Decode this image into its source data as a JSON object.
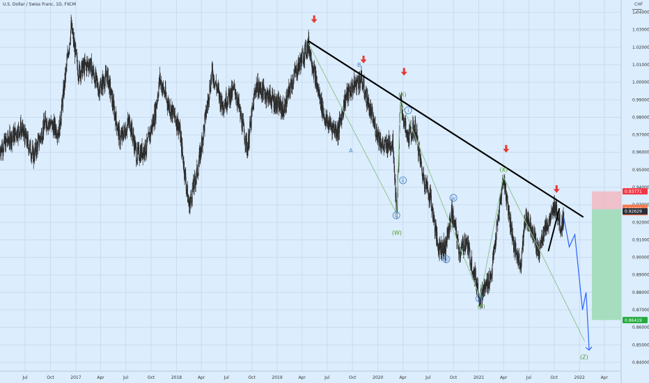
{
  "header": {
    "title": "U.S. Dollar / Swiss Franc, 1D, FXCM",
    "currency": "CHF",
    "collapse_glyph": "⌃"
  },
  "colors": {
    "background": "#dcedfd",
    "candle": "#2b2b2b",
    "trendline": "#000000",
    "wave_path": "#8ec58e",
    "projection": "#2962ff",
    "arrow": "#e53935",
    "stop_zone": "#f1b8c2",
    "target_zone": "#9ed9b4",
    "label_blue": "#4a86c8",
    "label_green": "#4c9a2a"
  },
  "chart_data": {
    "type": "candlestick",
    "symbol": "USDCHF",
    "timeframe": "1D",
    "ylim": [
      0.835,
      1.047
    ],
    "xlim": [
      "2016-04",
      "2022-06"
    ],
    "y_ticks": [
      "1.04000",
      "1.03000",
      "1.02000",
      "1.01000",
      "1.00000",
      "0.99000",
      "0.98000",
      "0.97000",
      "0.96000",
      "0.95000",
      "0.94000",
      "0.93000",
      "0.92000",
      "0.91000",
      "0.90000",
      "0.89000",
      "0.88000",
      "0.87000",
      "0.86000",
      "0.85000",
      "0.84000"
    ],
    "x_ticks": [
      "Jul",
      "Oct",
      "2017",
      "Apr",
      "Jul",
      "Oct",
      "2018",
      "Apr",
      "Jul",
      "Oct",
      "2019",
      "Apr",
      "Jul",
      "Oct",
      "2020",
      "Apr",
      "Jul",
      "Oct",
      "2021",
      "Apr",
      "Jul",
      "Oct",
      "2022",
      "Apr"
    ],
    "price_path": [
      [
        "2016-04-01",
        0.962
      ],
      [
        "2016-06-15",
        0.974
      ],
      [
        "2016-08-01",
        0.958
      ],
      [
        "2016-09-15",
        0.978
      ],
      [
        "2016-11-01",
        0.972
      ],
      [
        "2016-12-15",
        1.032
      ],
      [
        "2017-01-10",
        1.006
      ],
      [
        "2017-02-20",
        1.011
      ],
      [
        "2017-03-25",
        0.996
      ],
      [
        "2017-04-25",
        1.004
      ],
      [
        "2017-06-10",
        0.967
      ],
      [
        "2017-07-15",
        0.978
      ],
      [
        "2017-08-10",
        0.958
      ],
      [
        "2017-09-15",
        0.963
      ],
      [
        "2017-10-15",
        0.982
      ],
      [
        "2017-11-01",
        1.002
      ],
      [
        "2017-12-01",
        0.988
      ],
      [
        "2018-01-10",
        0.975
      ],
      [
        "2018-02-15",
        0.929
      ],
      [
        "2018-03-20",
        0.951
      ],
      [
        "2018-05-10",
        1.006
      ],
      [
        "2018-06-15",
        0.987
      ],
      [
        "2018-08-01",
        0.996
      ],
      [
        "2018-09-15",
        0.962
      ],
      [
        "2018-10-15",
        0.998
      ],
      [
        "2018-12-01",
        0.992
      ],
      [
        "2019-01-25",
        0.984
      ],
      [
        "2019-03-01",
        1.003
      ],
      [
        "2019-04-25",
        1.022
      ],
      [
        "2019-05-25",
        0.998
      ],
      [
        "2019-06-25",
        0.978
      ],
      [
        "2019-08-10",
        0.972
      ],
      [
        "2019-09-05",
        0.991
      ],
      [
        "2019-10-05",
        0.998
      ],
      [
        "2019-11-01",
        1.002
      ],
      [
        "2019-12-20",
        0.975
      ],
      [
        "2020-01-20",
        0.963
      ],
      [
        "2020-02-25",
        0.966
      ],
      [
        "2020-03-09",
        0.925
      ],
      [
        "2020-03-23",
        0.99
      ],
      [
        "2020-04-15",
        0.968
      ],
      [
        "2020-05-15",
        0.974
      ],
      [
        "2020-06-10",
        0.948
      ],
      [
        "2020-07-10",
        0.934
      ],
      [
        "2020-08-05",
        0.907
      ],
      [
        "2020-09-01",
        0.905
      ],
      [
        "2020-09-25",
        0.926
      ],
      [
        "2020-10-25",
        0.902
      ],
      [
        "2020-11-15",
        0.91
      ],
      [
        "2021-01-06",
        0.877
      ],
      [
        "2021-02-15",
        0.89
      ],
      [
        "2021-03-31",
        0.946
      ],
      [
        "2021-05-10",
        0.905
      ],
      [
        "2021-06-01",
        0.896
      ],
      [
        "2021-06-20",
        0.924
      ],
      [
        "2021-07-15",
        0.916
      ],
      [
        "2021-08-05",
        0.902
      ],
      [
        "2021-08-25",
        0.916
      ],
      [
        "2021-09-20",
        0.922
      ],
      [
        "2021-10-05",
        0.931
      ],
      [
        "2021-10-25",
        0.917
      ],
      [
        "2021-11-05",
        0.923
      ]
    ],
    "trendline": [
      [
        "2019-04-25",
        1.0235
      ],
      [
        "2022-01-15",
        0.923
      ]
    ],
    "triangle_support": [
      [
        "2021-09-10",
        0.9035
      ],
      [
        "2021-10-20",
        0.928
      ]
    ],
    "projection": [
      [
        "2021-11-05",
        0.923
      ],
      [
        "2021-11-25",
        0.906
      ],
      [
        "2021-12-15",
        0.913
      ],
      [
        "2022-01-12",
        0.87
      ],
      [
        "2022-01-25",
        0.88
      ],
      [
        "2022-02-05",
        0.847
      ]
    ],
    "wave_lines": [
      [
        [
          "2019-04-25",
          1.022
        ],
        [
          "2020-03-09",
          0.925
        ],
        [
          "2020-03-23",
          0.99
        ],
        [
          "2021-01-06",
          0.877
        ],
        [
          "2021-03-31",
          0.946
        ],
        [
          "2022-01-20",
          0.852
        ]
      ]
    ],
    "annotations": [
      {
        "text": "A",
        "date": "2019-09-25",
        "price": 0.961,
        "color": "blue",
        "shape": "plain"
      },
      {
        "text": "B",
        "date": "2019-10-25",
        "price": 1.01,
        "color": "blue",
        "shape": "plain"
      },
      {
        "text": "(W)",
        "date": "2020-03-10",
        "price": 0.914,
        "color": "green",
        "shape": "plain"
      },
      {
        "text": "(X)",
        "date": "2020-03-30",
        "price": 0.993,
        "color": "green",
        "shape": "plain"
      },
      {
        "text": "(Y)",
        "date": "2021-01-10",
        "price": 0.872,
        "color": "green",
        "shape": "plain"
      },
      {
        "text": "(X)",
        "date": "2021-04-01",
        "price": 0.95,
        "color": "green",
        "shape": "plain"
      },
      {
        "text": "(Z)",
        "date": "2022-01-18",
        "price": 0.843,
        "color": "green",
        "shape": "plain"
      },
      {
        "text": "C",
        "date": "2020-03-08",
        "price": 0.924,
        "color": "blue",
        "shape": "circle"
      },
      {
        "text": "i",
        "date": "2020-04-20",
        "price": 0.984,
        "color": "blue",
        "shape": "circle"
      },
      {
        "text": "ii",
        "date": "2020-04-01",
        "price": 0.944,
        "color": "blue",
        "shape": "circle"
      },
      {
        "text": "iii",
        "date": "2020-09-05",
        "price": 0.899,
        "color": "blue",
        "shape": "circle"
      },
      {
        "text": "iv",
        "date": "2020-10-01",
        "price": 0.934,
        "color": "blue",
        "shape": "circle"
      },
      {
        "text": "v",
        "date": "2021-01-03",
        "price": 0.8765,
        "color": "blue",
        "shape": "circle"
      }
    ],
    "red_arrows": [
      {
        "date": "2019-05-15",
        "price": 1.035
      },
      {
        "date": "2019-11-10",
        "price": 1.012
      },
      {
        "date": "2020-04-05",
        "price": 1.005
      },
      {
        "date": "2021-04-10",
        "price": 0.961
      },
      {
        "date": "2021-10-10",
        "price": 0.938
      }
    ],
    "position": {
      "start": "2022-02-15",
      "end": "2022-06-01",
      "entry": 0.9275,
      "stop": 0.9377,
      "target": 0.8642
    },
    "price_labels": [
      {
        "text": "0.93771",
        "price": 0.93771,
        "color": "#f23645"
      },
      {
        "text": "USDCHF",
        "price": 0.9283,
        "color": "#f57c53"
      },
      {
        "text": "0.92759",
        "price": 0.92759,
        "color": "#f57c53"
      },
      {
        "text": "10:46:11",
        "price": 0.9258,
        "color": "#f57c53"
      },
      {
        "text": "0.92629",
        "price": 0.92629,
        "color": "#2a2e39"
      },
      {
        "text": "0.86419",
        "price": 0.86419,
        "color": "#22ab3c"
      }
    ]
  }
}
